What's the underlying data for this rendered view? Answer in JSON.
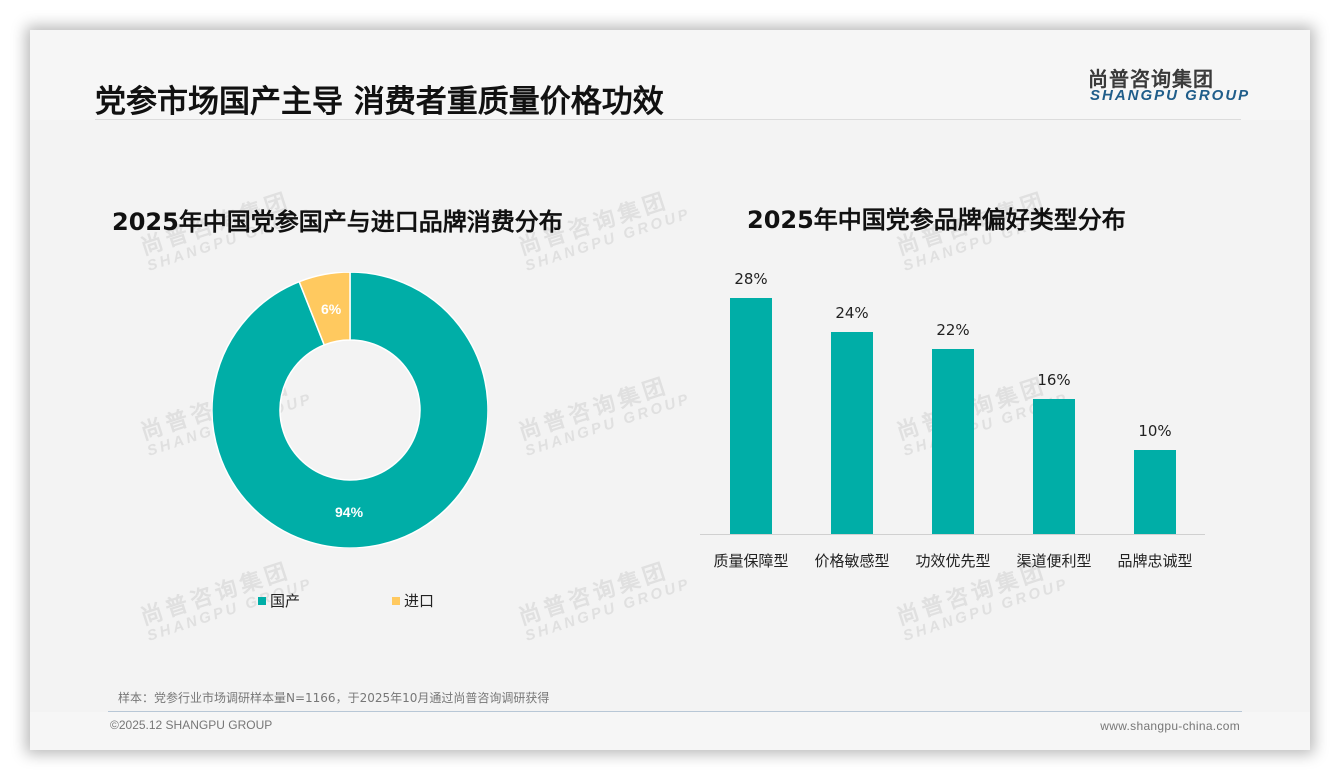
{
  "header": {
    "title": "党参市场国产主导 消费者重质量价格功效",
    "logo_cn": "尚普咨询集团",
    "logo_en": "SHANGPU GROUP"
  },
  "watermark": {
    "cn": "尚普咨询集团",
    "en": "SHANGPU GROUP"
  },
  "colors": {
    "teal": "#00aea7",
    "yellow": "#ffc95f",
    "logo_blue": "#1f5d8a"
  },
  "left_chart": {
    "title": "2025年中国党参国产与进口品牌消费分布",
    "slices": [
      {
        "label": "国产",
        "value": 94,
        "value_label": "94%",
        "color": "#00aea7"
      },
      {
        "label": "进口",
        "value": 6,
        "value_label": "6%",
        "color": "#ffc95f"
      }
    ],
    "legend": [
      {
        "label": "国产",
        "color": "#00aea7"
      },
      {
        "label": "进口",
        "color": "#ffc95f"
      }
    ]
  },
  "right_chart": {
    "title": "2025年中国党参品牌偏好类型分布",
    "bars": [
      {
        "category": "质量保障型",
        "value": 28,
        "value_label": "28%"
      },
      {
        "category": "价格敏感型",
        "value": 24,
        "value_label": "24%"
      },
      {
        "category": "功效优先型",
        "value": 22,
        "value_label": "22%"
      },
      {
        "category": "渠道便利型",
        "value": 16,
        "value_label": "16%"
      },
      {
        "category": "品牌忠诚型",
        "value": 10,
        "value_label": "10%"
      }
    ]
  },
  "chart_data": [
    {
      "type": "pie",
      "title": "2025年中国党参国产与进口品牌消费分布",
      "categories": [
        "国产",
        "进口"
      ],
      "values": [
        94,
        6
      ],
      "unit": "%",
      "donut": true,
      "legend_position": "bottom"
    },
    {
      "type": "bar",
      "title": "2025年中国党参品牌偏好类型分布",
      "categories": [
        "质量保障型",
        "价格敏感型",
        "功效优先型",
        "渠道便利型",
        "品牌忠诚型"
      ],
      "values": [
        28,
        24,
        22,
        16,
        10
      ],
      "unit": "%",
      "xlabel": "",
      "ylabel": "",
      "grid": false,
      "data_labels": true
    }
  ],
  "footer": {
    "note": "样本：党参行业市场调研样本量N=1166，于2025年10月通过尚普咨询调研获得",
    "copyright": "©2025.12 SHANGPU GROUP",
    "website": "www.shangpu-china.com"
  }
}
